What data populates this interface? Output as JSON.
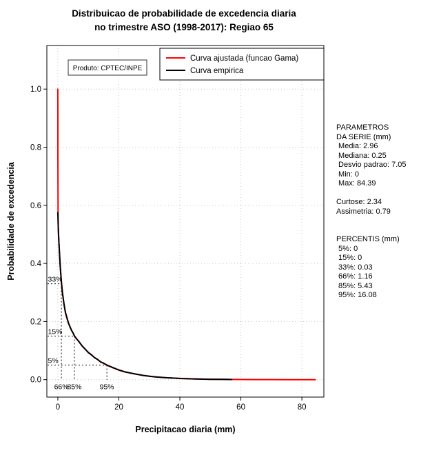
{
  "title": {
    "line1": "Distribuicao de probabilidade de excedencia diaria",
    "line2": "no trimestre ASO (1998-2017): Regiao 65"
  },
  "plot": {
    "produto_label": "Produto: CPTEC/INPE",
    "xlabel": "Precipitacao diaria (mm)",
    "ylabel": "Probabilidade de excedencia",
    "legend": [
      {
        "label": "Curva ajustada (funcao Gama)",
        "color": "#ff0000"
      },
      {
        "label": "Curva empirica",
        "color": "#000000"
      }
    ]
  },
  "side_panel": {
    "lines": [
      "PARAMETROS",
      "DA SERIE (mm)",
      " Media: 2.96",
      " Mediana: 0.25",
      " Desvio padrao: 7.05",
      " Min: 0",
      " Max: 84.39",
      "",
      "Curtose: 2.34",
      "Assimetria: 0.79",
      "",
      "",
      "PERCENTIS (mm)",
      " 5%: 0",
      " 15%: 0",
      " 33%: 0.03",
      " 66%: 1.16",
      " 85%: 5.43",
      " 95%: 16.08"
    ]
  },
  "chart_data": {
    "type": "line",
    "title": "Distribuicao de probabilidade de excedencia diaria no trimestre ASO (1998-2017): Regiao 65",
    "xlabel": "Precipitacao diaria (mm)",
    "ylabel": "Probabilidade de excedencia",
    "xlim": [
      -3.6,
      87.2
    ],
    "ylim": [
      -0.06,
      1.15
    ],
    "x_ticks": [
      0,
      20,
      40,
      60,
      80
    ],
    "x_tick_labels": [
      "0",
      "20",
      "40",
      "60",
      "80"
    ],
    "y_ticks": [
      0,
      0.2,
      0.4,
      0.6,
      0.8,
      1.0
    ],
    "y_tick_labels": [
      "0.0",
      "0.2",
      "0.4",
      "0.6",
      "0.8",
      "1.0"
    ],
    "grid": true,
    "legend_position": "top",
    "annotations": {
      "produto": "Produto: CPTEC/INPE",
      "statistics": {
        "media": 2.96,
        "mediana": 0.25,
        "desvio_padrao": 7.05,
        "min": 0,
        "max": 84.39,
        "curtose": 2.34,
        "assimetria": 0.79,
        "percentis": {
          "5%": 0,
          "15%": 0,
          "33%": 0.03,
          "66%": 1.16,
          "85%": 5.43,
          "95%": 16.08
        }
      }
    },
    "guides": [
      {
        "prob": 0.33,
        "prob_label": "33%",
        "x": 1.16,
        "x_label": "66%"
      },
      {
        "prob": 0.15,
        "prob_label": "15%",
        "x": 5.43,
        "x_label": "85%"
      },
      {
        "prob": 0.05,
        "prob_label": "5%",
        "x": 16.08,
        "x_label": "95%"
      }
    ],
    "series": [
      {
        "name": "Curva ajustada (funcao Gama)",
        "color": "#ff0000",
        "width": 2,
        "points": [
          [
            0,
            1.0
          ],
          [
            0.005,
            0.93
          ],
          [
            0.01,
            0.86
          ],
          [
            0.02,
            0.77
          ],
          [
            0.03,
            0.71
          ],
          [
            0.05,
            0.63
          ],
          [
            0.08,
            0.57
          ],
          [
            0.1,
            0.54
          ],
          [
            0.15,
            0.52
          ],
          [
            0.2,
            0.51
          ],
          [
            0.25,
            0.498
          ],
          [
            0.35,
            0.472
          ],
          [
            0.5,
            0.441
          ],
          [
            0.75,
            0.394
          ],
          [
            1,
            0.357
          ],
          [
            1.16,
            0.335
          ],
          [
            1.5,
            0.299
          ],
          [
            2,
            0.26
          ],
          [
            2.5,
            0.232
          ],
          [
            3,
            0.211
          ],
          [
            3.5,
            0.195
          ],
          [
            4,
            0.181
          ],
          [
            4.5,
            0.17
          ],
          [
            5,
            0.16
          ],
          [
            5.43,
            0.15
          ],
          [
            6,
            0.143
          ],
          [
            7,
            0.129
          ],
          [
            8,
            0.116
          ],
          [
            9,
            0.104
          ],
          [
            10,
            0.094
          ],
          [
            11,
            0.085
          ],
          [
            12,
            0.0765
          ],
          [
            13,
            0.069
          ],
          [
            14,
            0.062
          ],
          [
            15,
            0.056
          ],
          [
            16.08,
            0.05
          ],
          [
            18,
            0.041
          ],
          [
            20,
            0.0334
          ],
          [
            22,
            0.027
          ],
          [
            25,
            0.02
          ],
          [
            28,
            0.0148
          ],
          [
            30,
            0.0119
          ],
          [
            32,
            0.0097
          ],
          [
            35,
            0.0071
          ],
          [
            40,
            0.0042
          ],
          [
            45,
            0.0025
          ],
          [
            50,
            0.0015
          ],
          [
            55,
            0.0009
          ],
          [
            60,
            0.00055
          ],
          [
            65,
            0.00033
          ],
          [
            70,
            0.0002
          ],
          [
            75,
            0.00012
          ],
          [
            80,
            7e-05
          ],
          [
            84.39,
            5e-05
          ]
        ]
      },
      {
        "name": "Curva empirica",
        "color": "#000000",
        "width": 2,
        "points": [
          [
            0,
            0.575
          ],
          [
            0.05,
            0.555
          ],
          [
            0.1,
            0.538
          ],
          [
            0.15,
            0.522
          ],
          [
            0.2,
            0.508
          ],
          [
            0.25,
            0.496
          ],
          [
            0.35,
            0.473
          ],
          [
            0.5,
            0.443
          ],
          [
            0.75,
            0.392
          ],
          [
            1,
            0.359
          ],
          [
            1.16,
            0.337
          ],
          [
            1.5,
            0.3
          ],
          [
            2,
            0.262
          ],
          [
            2.5,
            0.23
          ],
          [
            3,
            0.213
          ],
          [
            3.5,
            0.194
          ],
          [
            4,
            0.182
          ],
          [
            4.5,
            0.169
          ],
          [
            5,
            0.161
          ],
          [
            5.43,
            0.151
          ],
          [
            6,
            0.142
          ],
          [
            7,
            0.13
          ],
          [
            8,
            0.115
          ],
          [
            9,
            0.105
          ],
          [
            10,
            0.093
          ],
          [
            11,
            0.086
          ],
          [
            12,
            0.076
          ],
          [
            13,
            0.07
          ],
          [
            14,
            0.061
          ],
          [
            15,
            0.057
          ],
          [
            16.08,
            0.05
          ],
          [
            18,
            0.042
          ],
          [
            20,
            0.033
          ],
          [
            22,
            0.0265
          ],
          [
            25,
            0.0205
          ],
          [
            28,
            0.0145
          ],
          [
            30,
            0.012
          ],
          [
            32,
            0.0095
          ],
          [
            35,
            0.0072
          ],
          [
            40,
            0.0041
          ],
          [
            45,
            0.0026
          ],
          [
            50,
            0.0013
          ],
          [
            53,
            0.0009
          ],
          [
            57,
            0.0006
          ]
        ]
      }
    ]
  }
}
